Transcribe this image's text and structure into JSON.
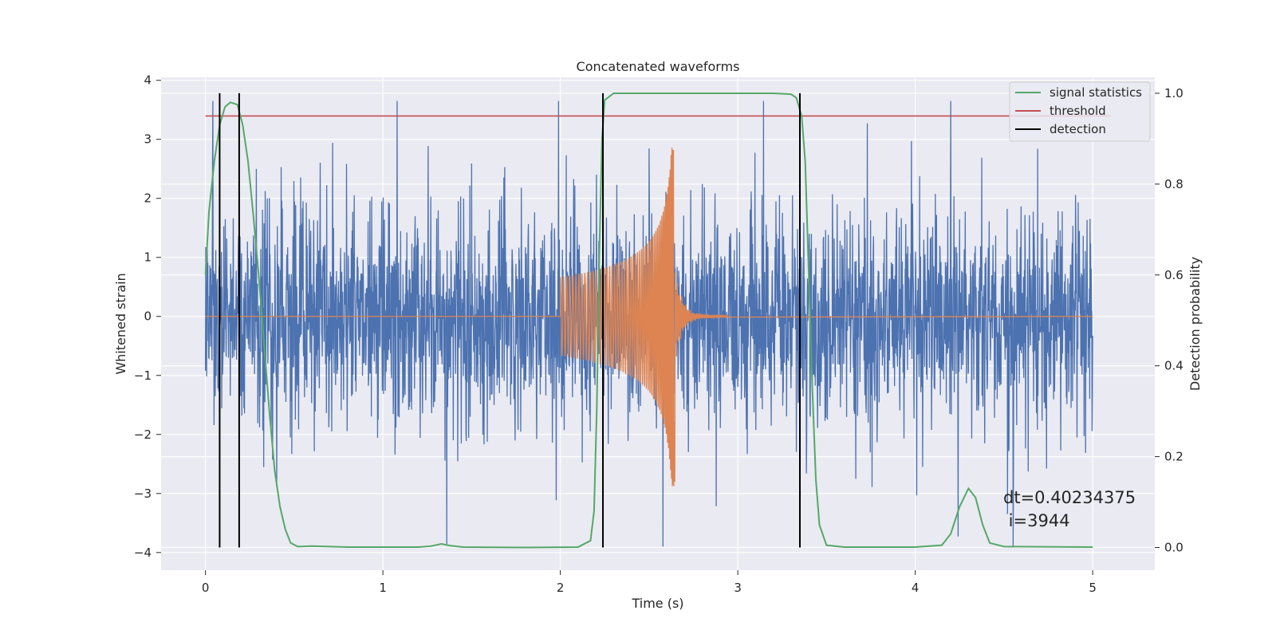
{
  "chart_data": {
    "type": "line",
    "title": "Concatenated waveforms",
    "xlabel": "Time (s)",
    "ylabel_left": "Whitened strain",
    "ylabel_right": "Detection probability",
    "xlim": [
      -0.25,
      5.35
    ],
    "ylim_left": [
      -4.3,
      4.05
    ],
    "ylim_right": [
      -0.05,
      1.035
    ],
    "x_ticks": [
      0,
      1,
      2,
      3,
      4,
      5
    ],
    "x_tick_labels": [
      "0",
      "1",
      "2",
      "3",
      "4",
      "5"
    ],
    "y_left_ticks": [
      4,
      3,
      2,
      1,
      0,
      -1,
      -2,
      -3,
      -4
    ],
    "y_left_tick_labels": [
      "4",
      "3",
      "2",
      "1",
      "0",
      "−1",
      "−2",
      "−3",
      "−4"
    ],
    "y_right_ticks": [
      1.0,
      0.8,
      0.6,
      0.4,
      0.2,
      0.0
    ],
    "y_right_tick_labels": [
      "1.0",
      "0.8",
      "0.6",
      "0.4",
      "0.2",
      "0.0"
    ],
    "grid": true,
    "legend_position": "top-right",
    "legend": [
      {
        "label": "signal statistics",
        "color": "#55a868"
      },
      {
        "label": "threshold",
        "color": "#c44e52"
      },
      {
        "label": "detection",
        "color": "#000000"
      }
    ],
    "colors": {
      "noise": "#4c72b0",
      "signal": "#dd8452",
      "background": "#eaeaf2"
    },
    "noise_series": {
      "x_start": 0,
      "x_end": 5,
      "typical_range": [
        -2.5,
        2.5
      ],
      "peak_range": [
        -3.9,
        3.65
      ]
    },
    "signal_series": {
      "x_start": 2.0,
      "x_end": 2.65,
      "peak_time": 2.64,
      "peak_amplitude": 2.9,
      "min_amplitude": -2.8
    },
    "threshold": {
      "value": 0.95,
      "x_range": [
        0,
        5.1
      ]
    },
    "detections": [
      0.08,
      0.19,
      2.24,
      3.35
    ],
    "signal_statistics": [
      [
        0.0,
        0.6
      ],
      [
        0.02,
        0.74
      ],
      [
        0.05,
        0.85
      ],
      [
        0.08,
        0.93
      ],
      [
        0.11,
        0.97
      ],
      [
        0.14,
        0.98
      ],
      [
        0.18,
        0.975
      ],
      [
        0.21,
        0.93
      ],
      [
        0.24,
        0.85
      ],
      [
        0.27,
        0.73
      ],
      [
        0.3,
        0.6
      ],
      [
        0.33,
        0.45
      ],
      [
        0.36,
        0.3
      ],
      [
        0.39,
        0.17
      ],
      [
        0.42,
        0.09
      ],
      [
        0.45,
        0.04
      ],
      [
        0.48,
        0.01
      ],
      [
        0.52,
        0.002
      ],
      [
        0.6,
        0.003
      ],
      [
        0.8,
        0.001
      ],
      [
        1.0,
        0.001
      ],
      [
        1.2,
        0.001
      ],
      [
        1.27,
        0.003
      ],
      [
        1.33,
        0.008
      ],
      [
        1.38,
        0.004
      ],
      [
        1.45,
        0.001
      ],
      [
        1.8,
        0.0
      ],
      [
        2.1,
        0.001
      ],
      [
        2.17,
        0.015
      ],
      [
        2.19,
        0.08
      ],
      [
        2.205,
        0.3
      ],
      [
        2.22,
        0.65
      ],
      [
        2.235,
        0.9
      ],
      [
        2.25,
        0.985
      ],
      [
        2.3,
        1.0
      ],
      [
        3.2,
        1.0
      ],
      [
        3.3,
        0.998
      ],
      [
        3.33,
        0.99
      ],
      [
        3.36,
        0.95
      ],
      [
        3.38,
        0.85
      ],
      [
        3.4,
        0.6
      ],
      [
        3.42,
        0.35
      ],
      [
        3.44,
        0.15
      ],
      [
        3.46,
        0.05
      ],
      [
        3.5,
        0.005
      ],
      [
        3.6,
        0.001
      ],
      [
        4.0,
        0.001
      ],
      [
        4.15,
        0.005
      ],
      [
        4.2,
        0.03
      ],
      [
        4.25,
        0.09
      ],
      [
        4.3,
        0.13
      ],
      [
        4.34,
        0.11
      ],
      [
        4.38,
        0.05
      ],
      [
        4.42,
        0.01
      ],
      [
        4.5,
        0.002
      ],
      [
        5.0,
        0.001
      ]
    ],
    "annotation": {
      "dt_text": "dt=0.40234375",
      "i_text": " i=3944"
    }
  }
}
